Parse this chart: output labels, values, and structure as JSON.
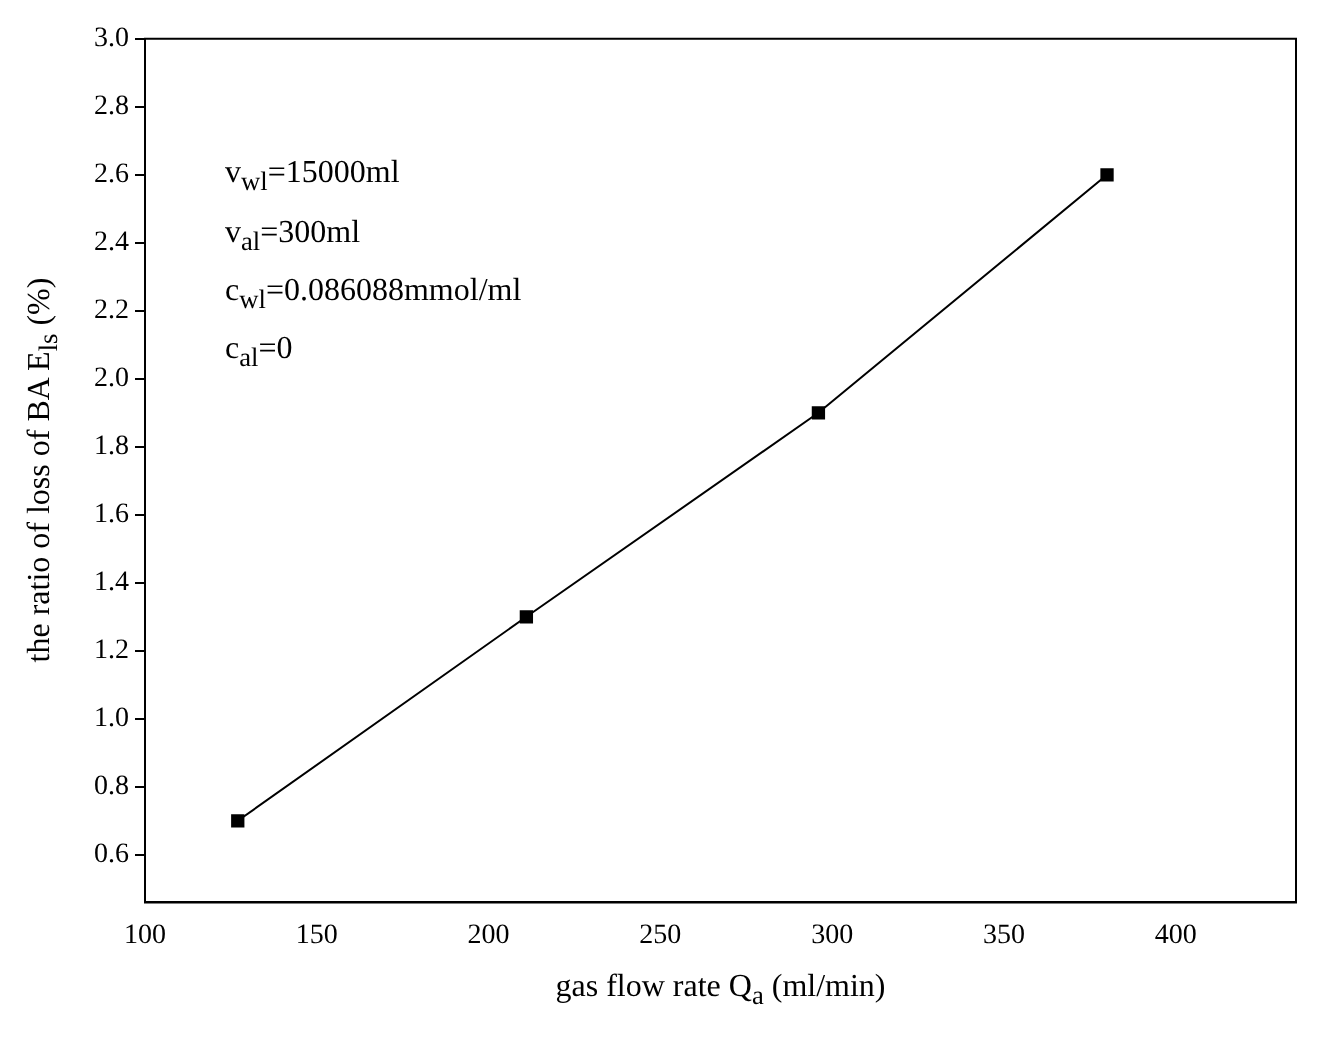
{
  "chart_data": {
    "type": "line",
    "xlabel": "gas flow rate Q$_{a}$ (ml/min)",
    "ylabel": "the ratio of loss of BA E$_{ls}$ (%)",
    "x": [
      127,
      211,
      296,
      380
    ],
    "series": [
      {
        "color": "#000000",
        "values": [
          0.7,
          1.3,
          1.9,
          2.6
        ]
      }
    ],
    "xlim": [
      100,
      435
    ],
    "xticks": [
      100,
      150,
      200,
      250,
      300,
      350,
      400
    ],
    "ylim": [
      0.46,
      3.0
    ],
    "yticks": [
      0.6,
      0.8,
      {
        "value": 1.0,
        "label": "1.0"
      },
      1.2,
      1.4,
      1.6,
      1.8,
      {
        "value": 2.0,
        "label": "2.0"
      },
      2.2,
      2.4,
      2.6,
      2.8,
      {
        "value": 3.0,
        "label": "3.0"
      }
    ],
    "annotations": [
      "v$_{wl}$=15000ml",
      "v$_{al}$=300ml",
      "c$_{wl}$=0.086088mmol/ml",
      "c$_{al}$=0"
    ],
    "grid": false,
    "legend": false,
    "marker": "square",
    "line_style": "solid"
  }
}
